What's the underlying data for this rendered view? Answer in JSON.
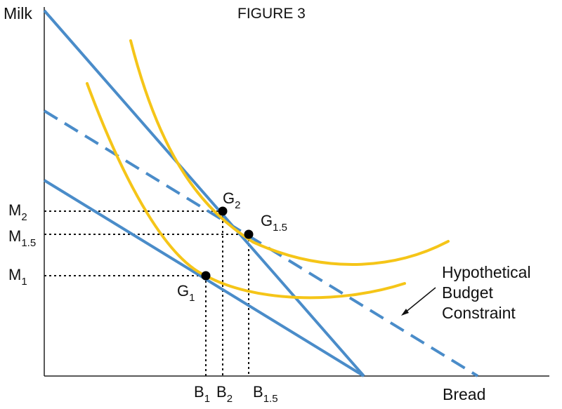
{
  "title": "FIGURE 3",
  "axes": {
    "y_label": "Milk",
    "x_label": "Bread"
  },
  "points": {
    "g1": {
      "base": "G",
      "sub": "1"
    },
    "g2": {
      "base": "G",
      "sub": "2"
    },
    "g15": {
      "base": "G",
      "sub": "1.5"
    }
  },
  "y_ticks": {
    "m2": {
      "base": "M",
      "sub": "2"
    },
    "m15": {
      "base": "M",
      "sub": "1.5"
    },
    "m1": {
      "base": "M",
      "sub": "1"
    }
  },
  "x_ticks": {
    "b1": {
      "base": "B",
      "sub": "1"
    },
    "b2": {
      "base": "B",
      "sub": "2"
    },
    "b15": {
      "base": "B",
      "sub": "1.5"
    }
  },
  "annotation": {
    "line1": "Hypothetical",
    "line2": "Budget",
    "line3": "Constraint"
  },
  "colors": {
    "budget_line": "#4a8cc9",
    "indifference_curve": "#f5c518",
    "point": "#000000",
    "axis": "#222222"
  }
}
